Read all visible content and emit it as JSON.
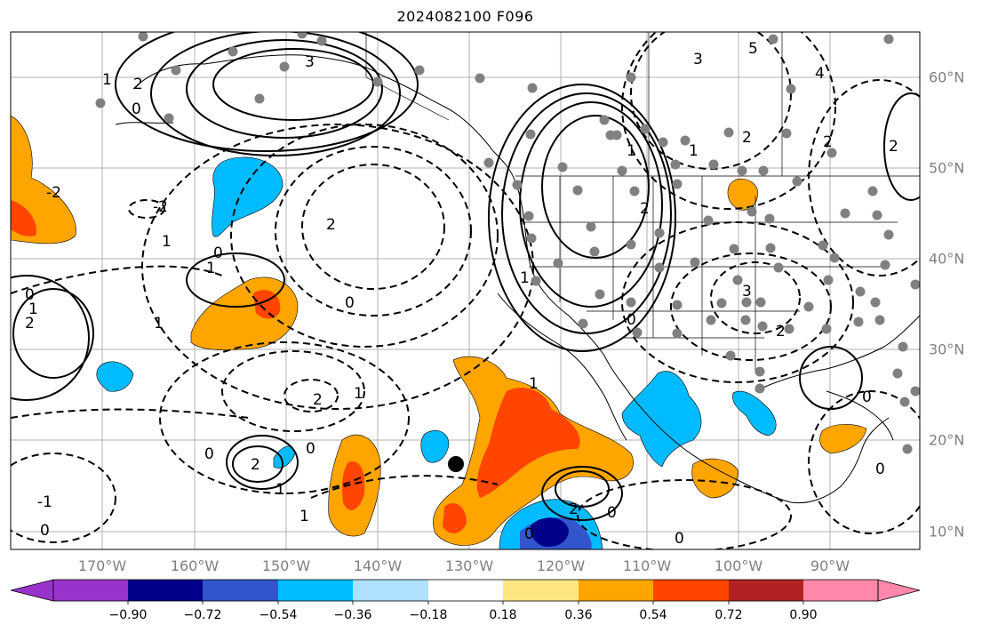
{
  "title": "2024082100 F096",
  "lon_labels": [
    "170°W",
    "160°W",
    "150°W",
    "140°W",
    "130°W",
    "120°W",
    "110°W",
    "100°W",
    "90°W"
  ],
  "lat_labels": [
    "60°N",
    "50°N",
    "40°N",
    "30°N",
    "20°N",
    "10°N"
  ],
  "colorbar": {
    "ticks": [
      "−0.90",
      "−0.72",
      "−0.54",
      "−0.36",
      "−0.18",
      "0.18",
      "0.36",
      "0.54",
      "0.72",
      "0.90"
    ],
    "colors": [
      "#9933cc",
      "#00008b",
      "#3355cc",
      "#00bbff",
      "#b0e0ff",
      "#ffffff",
      "#ffe680",
      "#ffa500",
      "#ff4500",
      "#b22222",
      "#ff88aa"
    ]
  },
  "colors": {
    "land_outline": "#000000",
    "grid": "#b0b0b0",
    "station_marker": "#808080",
    "storm_marker": "#000000"
  },
  "contour_labels": {
    "positive": [
      "3",
      "2",
      "1",
      "1",
      "1",
      "1",
      "1",
      "1",
      "2",
      "2",
      "2",
      "2",
      "2",
      "2",
      "2",
      "3",
      "4",
      "5"
    ],
    "negative": [
      "-1",
      "-1",
      "-2",
      "-2",
      "-2",
      "0",
      "0",
      "0",
      "0",
      "0",
      "0",
      "0",
      "0"
    ]
  }
}
